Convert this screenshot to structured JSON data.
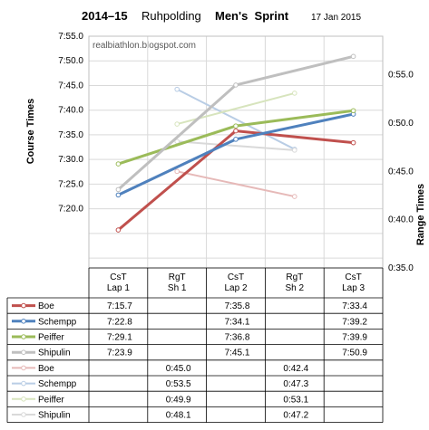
{
  "header": {
    "season": "2014–15",
    "venue": "Ruhpolding",
    "event": "Men's  Sprint",
    "date": "17 Jan 2015"
  },
  "watermark": "realbiathlon.blogspot.com",
  "chart_data": {
    "type": "line",
    "categories": [
      "CsT Lap 1",
      "RgT Sh 1",
      "CsT Lap 2",
      "RgT Sh 2",
      "CsT Lap 3"
    ],
    "category_lines": [
      [
        "CsT",
        "Lap 1"
      ],
      [
        "RgT",
        "Sh 1"
      ],
      [
        "CsT",
        "Lap 2"
      ],
      [
        "RgT",
        "Sh 2"
      ],
      [
        "CsT",
        "Lap 3"
      ]
    ],
    "ylabel": "Course Times",
    "y2label": "Range Times",
    "y_left_ticks": [
      "7:55.0",
      "7:50.0",
      "7:45.0",
      "7:40.0",
      "7:35.0",
      "7:30.0",
      "7:25.0",
      "7:20.0"
    ],
    "y_right_ticks": [
      "0:55.0",
      "0:50.0",
      "0:45.0",
      "0:40.0",
      "0:35.0"
    ],
    "y_left_range_seconds": [
      428,
      475
    ],
    "y_right_range_seconds": [
      35,
      59
    ],
    "grid": true,
    "legend": "table-below",
    "course_series": [
      {
        "name": "Boe",
        "color": "#c0504d",
        "points": [
          [
            0,
            435.7
          ],
          [
            2,
            455.8
          ],
          [
            4,
            453.4
          ]
        ],
        "labels": [
          "7:15.7",
          "",
          "7:35.8",
          "",
          "7:33.4"
        ]
      },
      {
        "name": "Schempp",
        "color": "#4f81bd",
        "points": [
          [
            0,
            442.8
          ],
          [
            2,
            454.1
          ],
          [
            4,
            459.2
          ]
        ],
        "labels": [
          "7:22.8",
          "",
          "7:34.1",
          "",
          "7:39.2"
        ]
      },
      {
        "name": "Peiffer",
        "color": "#9bbb59",
        "points": [
          [
            0,
            449.1
          ],
          [
            2,
            456.8
          ],
          [
            4,
            459.9
          ]
        ],
        "labels": [
          "7:29.1",
          "",
          "7:36.8",
          "",
          "7:39.9"
        ]
      },
      {
        "name": "Shipulin",
        "color": "#bfbfbf",
        "points": [
          [
            0,
            443.9
          ],
          [
            2,
            465.1
          ],
          [
            4,
            470.9
          ]
        ],
        "labels": [
          "7:23.9",
          "",
          "7:45.1",
          "",
          "7:50.9"
        ]
      }
    ],
    "range_series": [
      {
        "name": "Boe",
        "color": "#e6b9b8",
        "points": [
          [
            1,
            45.0
          ],
          [
            3,
            42.4
          ]
        ],
        "labels": [
          "",
          "0:45.0",
          "",
          "0:42.4",
          ""
        ]
      },
      {
        "name": "Schempp",
        "color": "#b9cde5",
        "points": [
          [
            1,
            53.5
          ],
          [
            3,
            47.3
          ]
        ],
        "labels": [
          "",
          "0:53.5",
          "",
          "0:47.3",
          ""
        ]
      },
      {
        "name": "Peiffer",
        "color": "#d7e4bd",
        "points": [
          [
            1,
            49.9
          ],
          [
            3,
            53.1
          ]
        ],
        "labels": [
          "",
          "0:49.9",
          "",
          "0:53.1",
          ""
        ]
      },
      {
        "name": "Shipulin",
        "color": "#d9d9d9",
        "points": [
          [
            1,
            48.1
          ],
          [
            3,
            47.2
          ]
        ],
        "labels": [
          "",
          "0:48.1",
          "",
          "0:47.2",
          ""
        ]
      }
    ]
  }
}
